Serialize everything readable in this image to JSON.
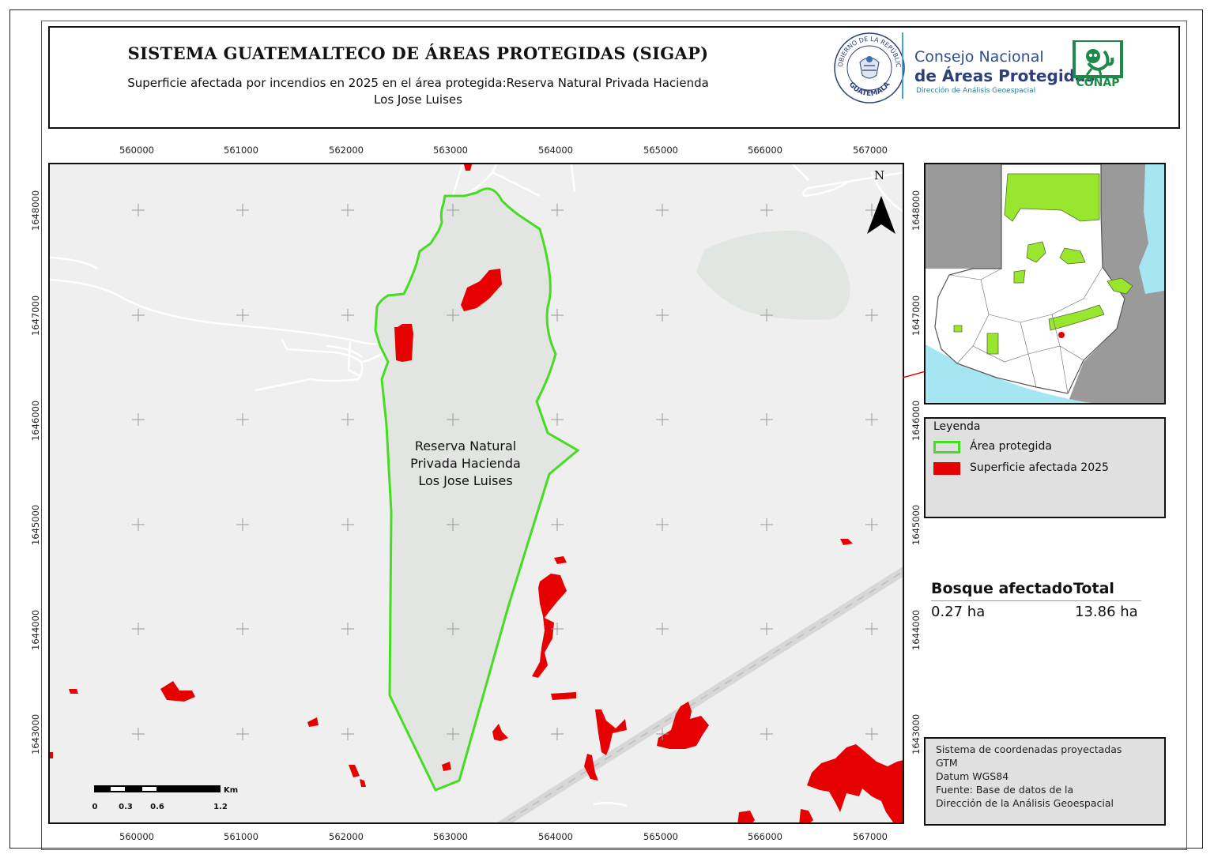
{
  "header": {
    "title": "SISTEMA GUATEMALTECO DE ÁREAS PROTEGIDAS  (SIGAP)",
    "subtitle_line1": "Superficie afectada por incendios en 2025 en el área protegida:Reserva Natural Privada Hacienda",
    "subtitle_line2": "Los Jose Luises"
  },
  "logos": {
    "seal_top_text": "GOBIERNO DE LA REPÚBLICA",
    "seal_bottom_text": "GUATEMALA",
    "council_line1": "Consejo Nacional",
    "council_line2": "de Áreas Protegidas",
    "council_line3": "Dirección de Análisis Geoespacial",
    "conap": "CONAP"
  },
  "map": {
    "x_ticks": [
      "560000",
      "561000",
      "562000",
      "563000",
      "564000",
      "565000",
      "566000",
      "567000"
    ],
    "y_ticks": [
      "1648000",
      "1647000",
      "1646000",
      "1645000",
      "1644000",
      "1643000"
    ],
    "area_label_line1": "Reserva Natural",
    "area_label_line2": "Privada Hacienda",
    "area_label_line3": "Los Jose Luises",
    "north": "N",
    "scale_labels": [
      "0",
      "0.3",
      "0.6",
      "1.2"
    ],
    "scale_unit": "Km",
    "colors": {
      "protected_outline": "#44dd22",
      "burned": "#e60000",
      "background": "#efefef",
      "water_inset": "#a6e6f2",
      "protected_inset": "#99e62e"
    }
  },
  "legend": {
    "title": "Leyenda",
    "items": [
      {
        "label": "Área protegida",
        "type": "outline",
        "color": "#44dd22"
      },
      {
        "label": "Superficie afectada 2025",
        "type": "fill",
        "color": "#e60000"
      }
    ]
  },
  "stats": {
    "col1_header": "Bosque afectado",
    "col2_header": "Total",
    "col1_value": "0.27 ha",
    "col2_value": "13.86 ha"
  },
  "source": {
    "lines": [
      "Sistema de coordenadas proyectadas",
      "GTM",
      "Datum WGS84",
      "Fuente: Base de datos de la",
      "Dirección de la Análisis Geoespacial"
    ]
  }
}
